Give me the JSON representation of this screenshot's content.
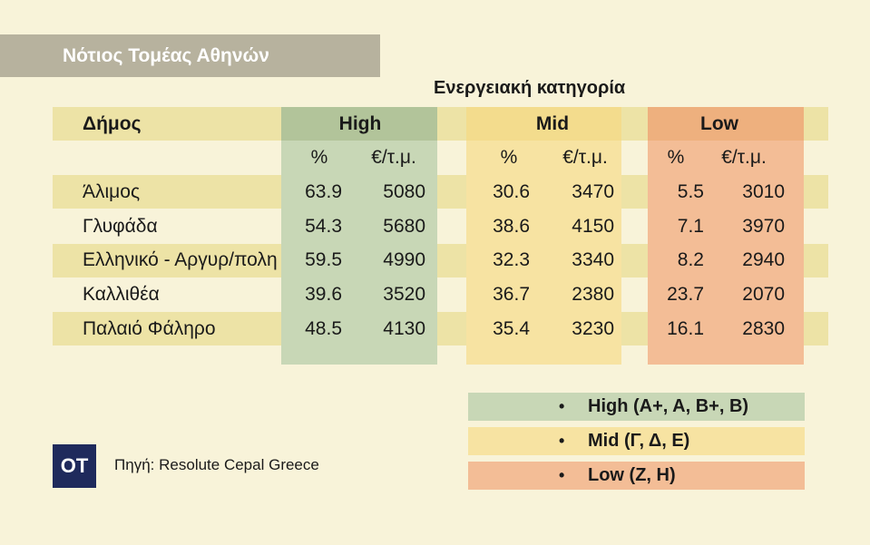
{
  "title": "Νότιος Τομέας Αθηνών",
  "super_header": "Ενεργειακή κατηγορία",
  "source": "Πηγή: Resolute Cepal Greece",
  "logo_text": "OT",
  "colors": {
    "high": "#c8d7b6",
    "mid": "#f7e3a2",
    "low": "#f3bd96",
    "high_header": "#b2c49a",
    "mid_header": "#f3dc8d",
    "low_header": "#eeb07e",
    "row_band": "#ede3a6",
    "title_bg": "#b7b29e",
    "logo_bg": "#1f2a5c"
  },
  "chart_data": {
    "type": "table",
    "column_header_label": "Δήμος",
    "groups": [
      {
        "key": "high",
        "label": "High"
      },
      {
        "key": "mid",
        "label": "Mid"
      },
      {
        "key": "low",
        "label": "Low"
      }
    ],
    "sub_headers": [
      "%",
      "€/τ.μ."
    ],
    "rows": [
      {
        "name": "Άλιμος",
        "high": [
          "63.9",
          "5080"
        ],
        "mid": [
          "30.6",
          "3470"
        ],
        "low": [
          "5.5",
          "3010"
        ]
      },
      {
        "name": "Γλυφάδα",
        "high": [
          "54.3",
          "5680"
        ],
        "mid": [
          "38.6",
          "4150"
        ],
        "low": [
          "7.1",
          "3970"
        ]
      },
      {
        "name": "Ελληνικό - Αργυρ/πολη",
        "high": [
          "59.5",
          "4990"
        ],
        "mid": [
          "32.3",
          "3340"
        ],
        "low": [
          "8.2",
          "2940"
        ]
      },
      {
        "name": "Καλλιθέα",
        "high": [
          "39.6",
          "3520"
        ],
        "mid": [
          "36.7",
          "2380"
        ],
        "low": [
          "23.7",
          "2070"
        ]
      },
      {
        "name": "Παλαιό Φάληρο",
        "high": [
          "48.5",
          "4130"
        ],
        "mid": [
          "35.4",
          "3230"
        ],
        "low": [
          "16.1",
          "2830"
        ]
      }
    ]
  },
  "legend": [
    {
      "key": "high",
      "bullet": "•",
      "text": "High (A+, A, B+, B)"
    },
    {
      "key": "mid",
      "bullet": "•",
      "text": "Mid (Γ, Δ, Ε)"
    },
    {
      "key": "low",
      "bullet": "•",
      "text": "Low (Z, H)"
    }
  ]
}
